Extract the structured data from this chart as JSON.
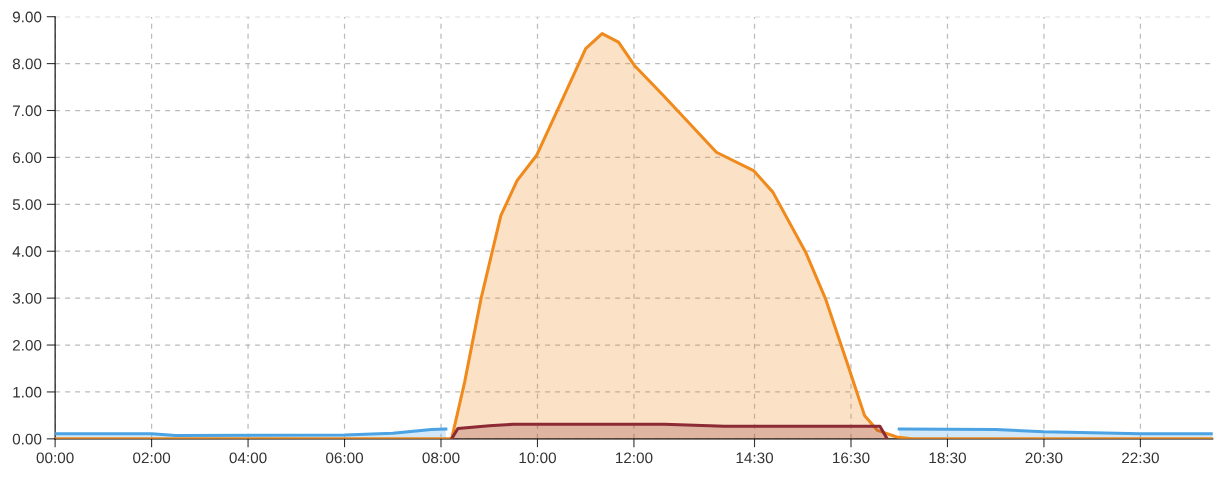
{
  "chart_data": {
    "type": "area",
    "xlim": [
      0,
      24
    ],
    "ylim": [
      0,
      9
    ],
    "xticks": [
      {
        "value": 0,
        "label": "00:00"
      },
      {
        "value": 2,
        "label": "02:00"
      },
      {
        "value": 4,
        "label": "04:00"
      },
      {
        "value": 6,
        "label": "06:00"
      },
      {
        "value": 8,
        "label": "08:00"
      },
      {
        "value": 10,
        "label": "10:00"
      },
      {
        "value": 12,
        "label": "12:00"
      },
      {
        "value": 14.5,
        "label": "14:30"
      },
      {
        "value": 16.5,
        "label": "16:30"
      },
      {
        "value": 18.5,
        "label": "18:30"
      },
      {
        "value": 20.5,
        "label": "20:30"
      },
      {
        "value": 22.5,
        "label": "22:30"
      }
    ],
    "yticks": [
      {
        "value": 0,
        "label": "0.00"
      },
      {
        "value": 1,
        "label": "1.00"
      },
      {
        "value": 2,
        "label": "2.00"
      },
      {
        "value": 3,
        "label": "3.00"
      },
      {
        "value": 4,
        "label": "4.00"
      },
      {
        "value": 5,
        "label": "5.00"
      },
      {
        "value": 6,
        "label": "6.00"
      },
      {
        "value": 7,
        "label": "7.00"
      },
      {
        "value": 8,
        "label": "8.00"
      },
      {
        "value": 9,
        "label": "9.00"
      }
    ],
    "grid": true,
    "line_style": "solid",
    "series": [
      {
        "color": "#4ba3e3",
        "x": [
          0,
          2,
          2.5,
          6,
          7,
          7.8,
          8.1,
          8.2,
          17.2,
          17.5,
          19.5,
          20.5,
          22.5,
          24
        ],
        "values": [
          0.11,
          0.11,
          0.07,
          0.08,
          0.12,
          0.2,
          0.21,
          null,
          null,
          0.21,
          0.2,
          0.15,
          0.11,
          0.11
        ]
      },
      {
        "color": "#f08a1c",
        "x": [
          0,
          8.22,
          8.49,
          8.83,
          9.24,
          9.58,
          9.98,
          10.46,
          11.0,
          11.34,
          11.68,
          12.01,
          12.61,
          13.71,
          14.48,
          14.88,
          15.56,
          15.97,
          16.44,
          16.78,
          17.05,
          17.45,
          17.76,
          24
        ],
        "values": [
          0,
          0,
          1.21,
          2.99,
          4.76,
          5.51,
          6.04,
          7.11,
          8.32,
          8.64,
          8.46,
          7.96,
          7.32,
          6.11,
          5.72,
          5.26,
          3.98,
          2.99,
          1.56,
          0.5,
          0.18,
          0.04,
          0,
          0
        ]
      },
      {
        "color": "#8c2a35",
        "x": [
          8.22,
          8.35,
          9.0,
          9.5,
          12.63,
          13.88,
          17.1,
          17.25
        ],
        "values": [
          0,
          0.22,
          0.28,
          0.31,
          0.31,
          0.27,
          0.27,
          0
        ]
      }
    ]
  }
}
